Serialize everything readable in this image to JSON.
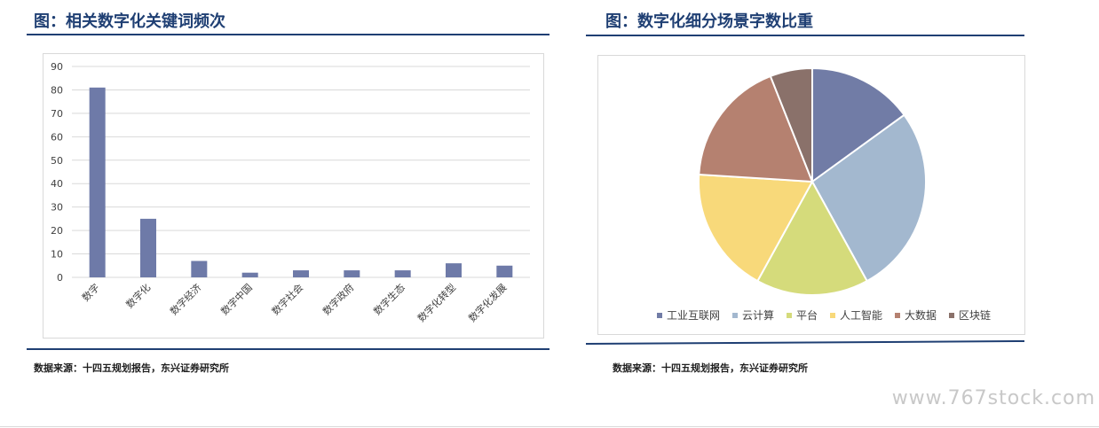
{
  "left_panel": {
    "title": "图：相关数字化关键词频次",
    "source": "数据来源：十四五规划报告，东兴证券研究所"
  },
  "right_panel": {
    "title": "图：数字化细分场景字数比重",
    "source": "数据来源：十四五规划报告，东兴证券研究所"
  },
  "watermark": "www.767stock.com",
  "colors": {
    "title": "#1f3f73",
    "bar": "#6e7aa8"
  },
  "chart_data": [
    {
      "type": "bar",
      "categories": [
        "数字",
        "数字化",
        "数字经济",
        "数字中国",
        "数字社会",
        "数字政府",
        "数字生态",
        "数字化转型",
        "数字化发展"
      ],
      "values": [
        81,
        25,
        7,
        2,
        3,
        3,
        3,
        6,
        5
      ],
      "ylim": [
        0,
        90
      ],
      "yticks": [
        0,
        10,
        20,
        30,
        40,
        50,
        60,
        70,
        80,
        90
      ],
      "grid": true,
      "title": "",
      "xlabel": "",
      "ylabel": ""
    },
    {
      "type": "pie",
      "labels": [
        "工业互联网",
        "云计算",
        "平台",
        "人工智能",
        "大数据",
        "区块链"
      ],
      "values": [
        15,
        27,
        16,
        18,
        18,
        6
      ],
      "colors": [
        "#717ca6",
        "#a3b8cf",
        "#d5db7b",
        "#f8d97a",
        "#b58170",
        "#8a716a"
      ],
      "legend": "bottom"
    }
  ]
}
